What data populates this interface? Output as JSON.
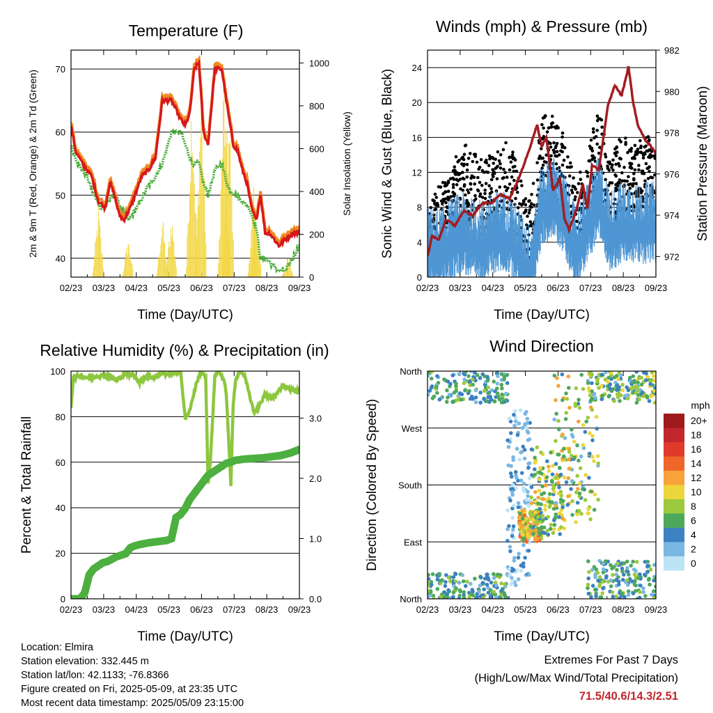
{
  "colors": {
    "temp_red": "#d7191c",
    "temp_orange": "#f08a24",
    "dewpoint_green": "#4aad3a",
    "solar_yellow": "#f2d744",
    "wind_blue": "#4f96d3",
    "gust_black": "#000000",
    "pressure_maroon": "#a11d21",
    "rh_lightgreen": "#8dc63f",
    "precip_green": "#4caf3f",
    "extremes_red": "#c0272d"
  },
  "chart_data": [
    {
      "id": "temperature",
      "type": "line",
      "title": "Temperature (F)",
      "xlabel": "Time (Day/UTC)",
      "ylabel_left": "2m & 9m T (Red, Orange) & 2m Td (Green)",
      "ylabel_right": "Solar Insolation (Yellow)",
      "x_tick_labels": [
        "02/23",
        "03/23",
        "04/23",
        "05/23",
        "06/23",
        "07/23",
        "08/23",
        "09/23"
      ],
      "y_left_ticks": [
        40,
        50,
        60,
        70
      ],
      "y_left_range": [
        37,
        73
      ],
      "y_right_ticks": [
        0,
        200,
        400,
        600,
        800,
        1000
      ],
      "y_right_range": [
        0,
        1060
      ],
      "grid": "horizontal",
      "series": [
        {
          "name": "2m T",
          "color": "#d7191c",
          "x": [
            0,
            0.02,
            0.05,
            0.09,
            0.12,
            0.15,
            0.17,
            0.19,
            0.21,
            0.23,
            0.26,
            0.29,
            0.31,
            0.34,
            0.37,
            0.4,
            0.44,
            0.48,
            0.5,
            0.52,
            0.54,
            0.56,
            0.58,
            0.6,
            0.63,
            0.66,
            0.68,
            0.71,
            0.73,
            0.75,
            0.77,
            0.79,
            0.81,
            0.83,
            0.85,
            0.87,
            0.89,
            0.91,
            0.94,
            0.97,
            1
          ],
          "y": [
            61,
            57,
            55,
            53,
            49,
            48,
            52,
            50,
            47,
            46,
            48,
            51,
            53,
            54,
            56,
            65,
            65,
            62,
            61,
            63,
            70,
            71,
            60,
            58,
            70,
            70,
            65,
            58,
            57,
            54,
            52,
            48,
            46,
            50,
            44,
            44,
            43,
            42,
            43,
            44,
            44
          ]
        },
        {
          "name": "2m Td",
          "color": "#4aad3a",
          "x": [
            0,
            0.03,
            0.07,
            0.1,
            0.13,
            0.16,
            0.19,
            0.22,
            0.25,
            0.29,
            0.33,
            0.37,
            0.4,
            0.44,
            0.48,
            0.5,
            0.53,
            0.56,
            0.58,
            0.6,
            0.63,
            0.66,
            0.69,
            0.72,
            0.75,
            0.78,
            0.81,
            0.83,
            0.85,
            0.88,
            0.91,
            0.94,
            0.97,
            1
          ],
          "y": [
            58,
            55,
            53,
            50,
            48,
            49,
            50,
            48,
            46,
            48,
            51,
            53,
            55,
            60,
            60,
            58,
            55,
            55,
            52,
            50,
            54,
            55,
            51,
            50,
            49,
            48,
            45,
            40,
            40,
            39,
            38,
            38,
            40,
            42
          ]
        },
        {
          "name": "Solar Insolation",
          "color": "#f2d744",
          "peaks_x": [
            0.12,
            0.25,
            0.4,
            0.44,
            0.53,
            0.57,
            0.67,
            0.69,
            0.8,
            0.81,
            0.95
          ],
          "peaks_y": [
            350,
            200,
            300,
            320,
            990,
            1000,
            1040,
            950,
            420,
            330,
            100
          ]
        }
      ]
    },
    {
      "id": "winds_pressure",
      "type": "line",
      "title": "Winds (mph) & Pressure (mb)",
      "xlabel": "Time (Day/UTC)",
      "ylabel_left": "Sonic Wind & Gust (Blue, Black)",
      "ylabel_right": "Station Pressure (Maroon)",
      "x_tick_labels": [
        "02/23",
        "03/23",
        "04/23",
        "05/23",
        "06/23",
        "07/23",
        "08/23",
        "09/23"
      ],
      "y_left_ticks": [
        0,
        4,
        8,
        12,
        16,
        20,
        24
      ],
      "y_left_range": [
        0,
        26
      ],
      "y_right_ticks": [
        972,
        974,
        976,
        978,
        980,
        982
      ],
      "y_right_range": [
        971,
        982
      ],
      "grid": "horizontal",
      "series": [
        {
          "name": "Station Pressure",
          "color": "#a11d21",
          "x": [
            0,
            0.02,
            0.05,
            0.08,
            0.12,
            0.16,
            0.2,
            0.24,
            0.28,
            0.32,
            0.36,
            0.4,
            0.44,
            0.48,
            0.5,
            0.52,
            0.55,
            0.58,
            0.6,
            0.62,
            0.65,
            0.68,
            0.7,
            0.72,
            0.75,
            0.79,
            0.82,
            0.85,
            0.88,
            0.9,
            0.92,
            0.95,
            0.98,
            1
          ],
          "y": [
            972,
            973,
            972.8,
            973.8,
            973.5,
            974.2,
            974,
            974.6,
            974.6,
            975,
            974.8,
            975.8,
            977,
            978.4,
            977.3,
            977.8,
            975.2,
            975.8,
            973.8,
            973.3,
            974.2,
            975.5,
            974.3,
            976.4,
            976.2,
            979.3,
            980.3,
            979.8,
            981.2,
            979.5,
            978.4,
            977.7,
            977.3,
            977
          ]
        },
        {
          "name": "Sonic Wind",
          "color": "#4f96d3",
          "style": "band",
          "x": [
            0,
            0.05,
            0.1,
            0.15,
            0.2,
            0.25,
            0.3,
            0.35,
            0.4,
            0.45,
            0.5,
            0.55,
            0.6,
            0.65,
            0.7,
            0.75,
            0.8,
            0.85,
            0.9,
            0.95,
            1
          ],
          "y": [
            3,
            3,
            4,
            5,
            4,
            4,
            5,
            5,
            3,
            1,
            8,
            9,
            7,
            3,
            6,
            9,
            5,
            6,
            6,
            6,
            6
          ]
        },
        {
          "name": "Gust",
          "color": "#000000",
          "style": "points",
          "x": [
            0,
            0.05,
            0.1,
            0.15,
            0.2,
            0.25,
            0.3,
            0.35,
            0.4,
            0.45,
            0.5,
            0.55,
            0.6,
            0.65,
            0.7,
            0.75,
            0.8,
            0.85,
            0.9,
            0.95,
            1
          ],
          "y": [
            5,
            6,
            8,
            11,
            10,
            9,
            10,
            12,
            8,
            4,
            14,
            14,
            12,
            6,
            10,
            15,
            9,
            12,
            11,
            12,
            11
          ]
        }
      ]
    },
    {
      "id": "humidity_precip",
      "type": "line",
      "title": "Relative Humidity (%) & Precipitation (in)",
      "xlabel": "Time (Day/UTC)",
      "ylabel_left": "Percent & Total Rainfall",
      "x_tick_labels": [
        "02/23",
        "03/23",
        "04/23",
        "05/23",
        "06/23",
        "07/23",
        "08/23",
        "09/23"
      ],
      "y_left_ticks": [
        0,
        20,
        40,
        60,
        80,
        100
      ],
      "y_left_range": [
        0,
        100
      ],
      "y_right_ticks": [
        "0.0",
        "1.0",
        "2.0",
        "3.0"
      ],
      "y_right_values": [
        0,
        1,
        2,
        3
      ],
      "y_right_range": [
        0,
        3.78
      ],
      "grid": "horizontal",
      "series": [
        {
          "name": "Relative Humidity",
          "color": "#8dc63f",
          "x": [
            0,
            0.01,
            0.03,
            0.08,
            0.12,
            0.16,
            0.2,
            0.24,
            0.28,
            0.3,
            0.33,
            0.36,
            0.4,
            0.44,
            0.48,
            0.5,
            0.52,
            0.55,
            0.57,
            0.59,
            0.6,
            0.61,
            0.63,
            0.65,
            0.67,
            0.68,
            0.7,
            0.71,
            0.72,
            0.74,
            0.76,
            0.78,
            0.8,
            0.82,
            0.85,
            0.88,
            0.9,
            0.93,
            0.96,
            1
          ],
          "y": [
            84,
            97,
            98,
            97,
            98,
            98,
            96,
            99,
            98,
            95,
            98,
            97,
            99,
            99,
            100,
            79,
            83,
            95,
            100,
            97,
            50,
            60,
            98,
            100,
            96,
            90,
            50,
            85,
            96,
            100,
            98,
            90,
            82,
            84,
            90,
            88,
            90,
            94,
            92,
            91
          ]
        },
        {
          "name": "Total Precipitation",
          "color": "#4caf3f",
          "x": [
            0,
            0.04,
            0.06,
            0.08,
            0.1,
            0.12,
            0.14,
            0.16,
            0.2,
            0.24,
            0.26,
            0.28,
            0.3,
            0.34,
            0.38,
            0.42,
            0.44,
            0.46,
            0.48,
            0.5,
            0.52,
            0.54,
            0.56,
            0.58,
            0.6,
            0.62,
            0.64,
            0.66,
            0.68,
            0.7,
            0.72,
            0.76,
            0.8,
            0.84,
            0.88,
            0.92,
            0.96,
            1
          ],
          "y": [
            0,
            0,
            0.1,
            0.4,
            0.5,
            0.55,
            0.6,
            0.62,
            0.7,
            0.75,
            0.85,
            0.88,
            0.9,
            0.93,
            0.95,
            0.97,
            1.0,
            1.35,
            1.4,
            1.5,
            1.65,
            1.75,
            1.85,
            1.95,
            2.05,
            2.1,
            2.15,
            2.2,
            2.25,
            2.27,
            2.3,
            2.32,
            2.33,
            2.34,
            2.36,
            2.38,
            2.42,
            2.48
          ]
        }
      ]
    },
    {
      "id": "wind_direction",
      "type": "scatter",
      "title": "Wind Direction",
      "xlabel": "Time (Day/UTC)",
      "ylabel_left": "Direction (Colored By Speed)",
      "x_tick_labels": [
        "02/23",
        "03/23",
        "04/23",
        "05/23",
        "06/23",
        "07/23",
        "08/23",
        "09/23"
      ],
      "y_tick_labels": [
        "North",
        "East",
        "South",
        "West",
        "North"
      ],
      "y_tick_values": [
        0,
        90,
        180,
        270,
        360
      ],
      "y_range": [
        0,
        360
      ],
      "grid": "horizontal",
      "legend_title": "mph",
      "legend_labels": [
        "20+",
        "18",
        "16",
        "14",
        "12",
        "10",
        "8",
        "6",
        "4",
        "2",
        "0"
      ],
      "legend_colors": [
        "#9e1a1d",
        "#c1272d",
        "#e03a2a",
        "#f0652a",
        "#f8a23a",
        "#ecd63b",
        "#9cc93e",
        "#4ea85c",
        "#3c81c0",
        "#7ab7e3",
        "#bde3f6"
      ],
      "legend_placement": "right",
      "clusters": [
        {
          "x": [
            0,
            0.35
          ],
          "y": [
            310,
            360
          ],
          "speed": [
            2,
            8
          ]
        },
        {
          "x": [
            0,
            0.35
          ],
          "y": [
            0,
            40
          ],
          "speed": [
            2,
            8
          ]
        },
        {
          "x": [
            0.35,
            0.45
          ],
          "y": [
            20,
            300
          ],
          "speed": [
            0,
            4
          ]
        },
        {
          "x": [
            0.4,
            0.5
          ],
          "y": [
            90,
            140
          ],
          "speed": [
            6,
            14
          ]
        },
        {
          "x": [
            0.45,
            0.6
          ],
          "y": [
            100,
            240
          ],
          "speed": [
            4,
            12
          ]
        },
        {
          "x": [
            0.55,
            0.75
          ],
          "y": [
            120,
            360
          ],
          "speed": [
            2,
            12
          ]
        },
        {
          "x": [
            0.7,
            1.0
          ],
          "y": [
            310,
            360
          ],
          "speed": [
            2,
            10
          ]
        },
        {
          "x": [
            0.7,
            1.0
          ],
          "y": [
            0,
            60
          ],
          "speed": [
            2,
            8
          ]
        }
      ]
    }
  ],
  "info": {
    "location": "Location: Elmira",
    "elevation": "Station elevation: 332.445 m",
    "latlon": "Station lat/lon: 42.1133; -76.8366",
    "created": "Figure created on Fri, 2025-05-09, at 23:35 UTC",
    "recent": "Most recent data timestamp: 2025/05/09 23:15:00"
  },
  "extremes": {
    "title": "Extremes For Past 7 Days",
    "subtitle": "(High/Low/Max Wind/Total Precipitation)",
    "values": "71.5/40.6/14.3/2.51"
  }
}
